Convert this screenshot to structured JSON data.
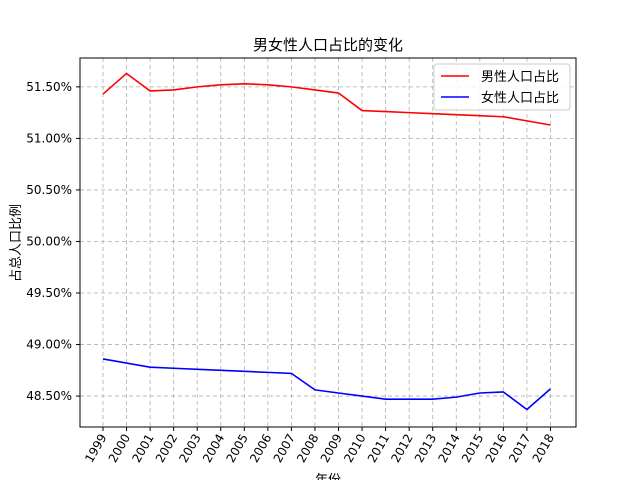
{
  "chart_data": {
    "type": "line",
    "title": "男女性人口占比的变化",
    "xlabel": "年份",
    "ylabel": "占总人口比例",
    "categories": [
      "1999",
      "2000",
      "2001",
      "2002",
      "2003",
      "2004",
      "2005",
      "2006",
      "2007",
      "2008",
      "2009",
      "2010",
      "2011",
      "2012",
      "2013",
      "2014",
      "2015",
      "2016",
      "2017",
      "2018"
    ],
    "ylim": [
      48.2,
      51.78
    ],
    "yticks": [
      48.5,
      49.0,
      49.5,
      50.0,
      50.5,
      51.0,
      51.5
    ],
    "ytick_labels": [
      "48.50%",
      "49.00%",
      "49.50%",
      "50.00%",
      "50.50%",
      "51.00%",
      "51.50%"
    ],
    "grid": true,
    "legend_position": "top-right",
    "series": [
      {
        "name": "男性人口占比",
        "color": "#ff0000",
        "values": [
          51.43,
          51.63,
          51.46,
          51.47,
          51.5,
          51.52,
          51.53,
          51.52,
          51.5,
          51.47,
          51.44,
          51.27,
          51.26,
          51.25,
          51.24,
          51.23,
          51.22,
          51.21,
          51.17,
          51.13
        ]
      },
      {
        "name": "女性人口占比",
        "color": "#0000ff",
        "values": [
          48.86,
          48.82,
          48.78,
          48.77,
          48.76,
          48.75,
          48.74,
          48.73,
          48.72,
          48.56,
          48.53,
          48.5,
          48.47,
          48.47,
          48.47,
          48.49,
          48.53,
          48.54,
          48.37,
          48.57
        ]
      }
    ]
  }
}
